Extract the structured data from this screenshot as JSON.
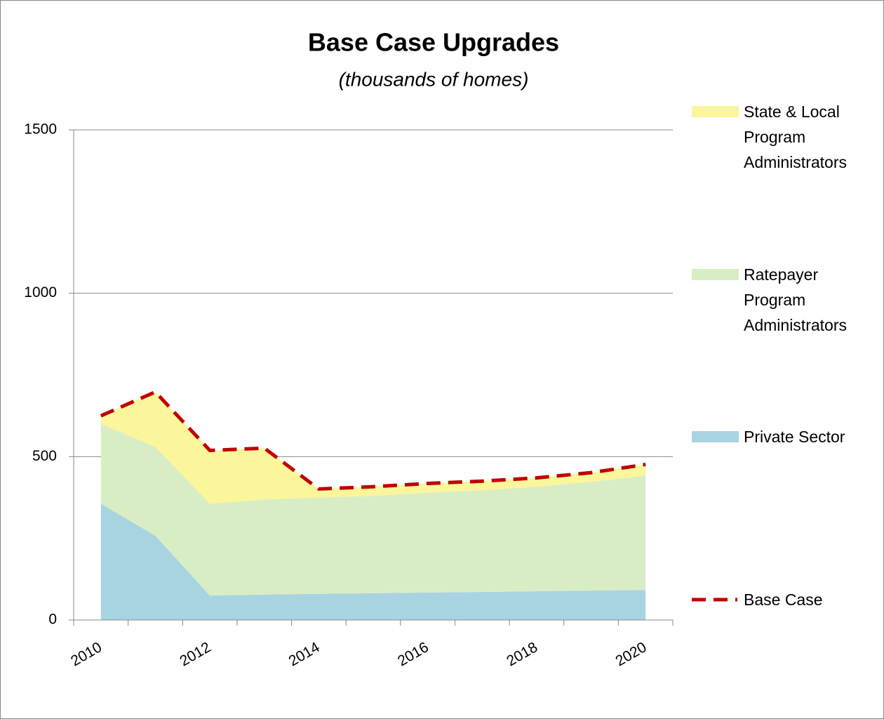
{
  "chart_data": {
    "type": "stacked_area",
    "title": "Base Case Upgrades",
    "subtitle": "(thousands of homes)",
    "categories": [
      "2010",
      null,
      "2012",
      null,
      "2014",
      null,
      "2016",
      null,
      "2018",
      null,
      "2020"
    ],
    "series": [
      {
        "name": "Private Sector",
        "color": "#a8d4e2",
        "kind": "area",
        "values": [
          356,
          258,
          75,
          78,
          80,
          82,
          84,
          86,
          88,
          90,
          92
        ]
      },
      {
        "name": "Ratepayer Program Administrators",
        "color": "#d9edc4",
        "kind": "area",
        "values": [
          244,
          272,
          281,
          291,
          295,
          298,
          306,
          311,
          320,
          333,
          350
        ]
      },
      {
        "name": "State & Local Program Administrators",
        "color": "#fbf59c",
        "kind": "area",
        "values": [
          25,
          168,
          163,
          157,
          26,
          28,
          28,
          28,
          27,
          28,
          34
        ]
      },
      {
        "name": "Base Case",
        "color": "#c00000",
        "kind": "line",
        "dashed": true,
        "values": [
          625,
          698,
          519,
          526,
          401,
          408,
          418,
          425,
          435,
          451,
          476
        ]
      }
    ],
    "ylim": [
      0,
      1500
    ],
    "yticks": [
      0,
      500,
      1000,
      1500
    ],
    "grid": true,
    "legend": "right"
  }
}
